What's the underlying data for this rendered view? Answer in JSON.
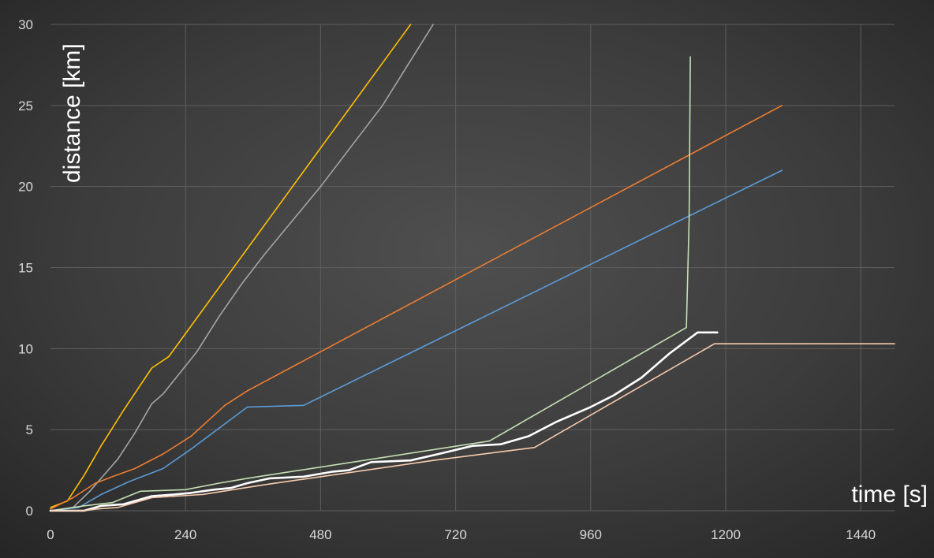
{
  "chart_data": {
    "type": "line",
    "xlabel": "time [s]",
    "ylabel": "distance [km]",
    "xlim": [
      0,
      1500
    ],
    "ylim": [
      0,
      30
    ],
    "xticks": [
      0,
      240,
      480,
      720,
      960,
      1200,
      1440
    ],
    "yticks": [
      0,
      5,
      10,
      15,
      20,
      25,
      30
    ],
    "grid": true,
    "legend": "none",
    "series": [
      {
        "color": "#ffc000",
        "width": 1.6,
        "points": [
          [
            0,
            0.2
          ],
          [
            30,
            0.6
          ],
          [
            60,
            2.2
          ],
          [
            90,
            4
          ],
          [
            130,
            6.2
          ],
          [
            180,
            8.8
          ],
          [
            210,
            9.5
          ],
          [
            640,
            30
          ]
        ]
      },
      {
        "color": "#a5a5a5",
        "width": 1.6,
        "points": [
          [
            0,
            0
          ],
          [
            40,
            0.2
          ],
          [
            70,
            1.2
          ],
          [
            100,
            2.4
          ],
          [
            120,
            3.2
          ],
          [
            150,
            4.8
          ],
          [
            180,
            6.6
          ],
          [
            200,
            7.2
          ],
          [
            260,
            9.8
          ],
          [
            300,
            12
          ],
          [
            340,
            14
          ],
          [
            380,
            15.8
          ],
          [
            480,
            20
          ],
          [
            590,
            25
          ],
          [
            680,
            30
          ]
        ]
      },
      {
        "color": "#ed7d31",
        "width": 1.6,
        "points": [
          [
            0,
            0.1
          ],
          [
            40,
            0.8
          ],
          [
            80,
            1.7
          ],
          [
            110,
            2.1
          ],
          [
            150,
            2.6
          ],
          [
            200,
            3.5
          ],
          [
            250,
            4.6
          ],
          [
            310,
            6.5
          ],
          [
            350,
            7.4
          ],
          [
            1300,
            25
          ]
        ]
      },
      {
        "color": "#5b9bd5",
        "width": 1.6,
        "points": [
          [
            0,
            0
          ],
          [
            50,
            0.2
          ],
          [
            90,
            1
          ],
          [
            140,
            1.8
          ],
          [
            200,
            2.6
          ],
          [
            250,
            3.8
          ],
          [
            350,
            6.4
          ],
          [
            450,
            6.5
          ],
          [
            1300,
            21
          ]
        ]
      },
      {
        "color": "#c5e0b4",
        "width": 1.6,
        "points": [
          [
            0,
            0
          ],
          [
            60,
            0.3
          ],
          [
            110,
            0.5
          ],
          [
            160,
            1.2
          ],
          [
            240,
            1.3
          ],
          [
            300,
            1.7
          ],
          [
            350,
            2
          ],
          [
            780,
            4.3
          ],
          [
            1130,
            11.3
          ],
          [
            1135,
            18
          ],
          [
            1137,
            28
          ]
        ]
      },
      {
        "color": "#ffffff",
        "width": 2.6,
        "points": [
          [
            0,
            0
          ],
          [
            30,
            0
          ],
          [
            60,
            0
          ],
          [
            90,
            0.3
          ],
          [
            130,
            0.4
          ],
          [
            160,
            0.7
          ],
          [
            180,
            0.9
          ],
          [
            220,
            1
          ],
          [
            250,
            1.1
          ],
          [
            290,
            1.3
          ],
          [
            320,
            1.4
          ],
          [
            350,
            1.7
          ],
          [
            390,
            2
          ],
          [
            450,
            2.1
          ],
          [
            500,
            2.4
          ],
          [
            530,
            2.5
          ],
          [
            570,
            3
          ],
          [
            640,
            3.1
          ],
          [
            690,
            3.5
          ],
          [
            750,
            4
          ],
          [
            800,
            4.1
          ],
          [
            850,
            4.6
          ],
          [
            900,
            5.5
          ],
          [
            960,
            6.4
          ],
          [
            1000,
            7.1
          ],
          [
            1050,
            8.2
          ],
          [
            1100,
            9.7
          ],
          [
            1150,
            11
          ],
          [
            1185,
            11
          ]
        ]
      },
      {
        "color": "#f8cbad",
        "width": 1.6,
        "points": [
          [
            0,
            0
          ],
          [
            60,
            0
          ],
          [
            80,
            0.1
          ],
          [
            120,
            0.2
          ],
          [
            180,
            0.8
          ],
          [
            270,
            1
          ],
          [
            380,
            1.6
          ],
          [
            500,
            2.2
          ],
          [
            680,
            3.1
          ],
          [
            860,
            3.9
          ],
          [
            1180,
            10.3
          ],
          [
            1500,
            10.3
          ]
        ]
      }
    ]
  }
}
